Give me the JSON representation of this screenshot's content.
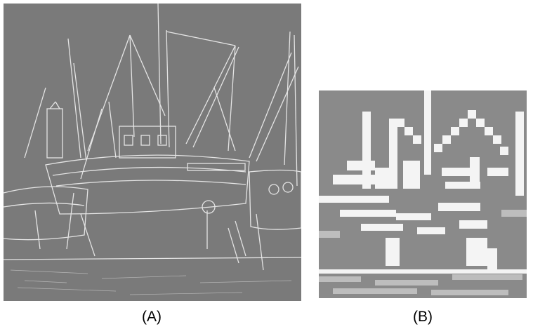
{
  "panels": [
    {
      "label": "(A)",
      "image": "edge-detected-boats-fine"
    },
    {
      "label": "(B)",
      "image": "edge-detected-boats-blocky-low-resolution"
    }
  ],
  "colors": {
    "background": "#ffffff",
    "image_gray": "#7a7a7a",
    "edge_white": "#ffffff",
    "caption_text": "#000000"
  }
}
